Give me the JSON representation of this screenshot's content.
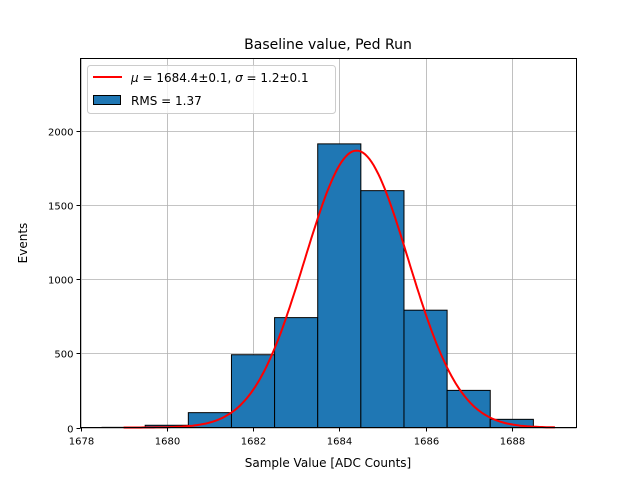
{
  "chart_data": {
    "type": "bar",
    "title": "Baseline value, Ped Run",
    "xlabel": "Sample Value [ADC Counts]",
    "ylabel": "Events",
    "xlim": [
      1678,
      1689.5
    ],
    "ylim": [
      0,
      2485
    ],
    "xticks": [
      1678,
      1680,
      1682,
      1684,
      1686,
      1688
    ],
    "yticks": [
      0,
      500,
      1000,
      1500,
      2000
    ],
    "grid": true,
    "bin_edges": [
      1678.5,
      1679.5,
      1680.5,
      1681.5,
      1682.5,
      1683.5,
      1684.5,
      1685.5,
      1686.5,
      1687.5,
      1688.5
    ],
    "values": [
      1,
      15,
      100,
      490,
      740,
      1910,
      1595,
      790,
      250,
      55
    ],
    "bar_color": "#1f77b4",
    "fit": {
      "type": "gaussian",
      "mu": 1684.4,
      "sigma": 1.2,
      "amplitude": 1865,
      "range": [
        1679,
        1689
      ],
      "color": "#ff0000"
    },
    "legend": {
      "placement": "top-left",
      "entries": [
        "$\\mu = 1684.4 \\pm 0.1$, $\\sigma = 1.2 \\pm 0.1$",
        "RMS = 1.37"
      ]
    },
    "legend_fit_parts": {
      "mu_sym": "μ",
      "mu_text": " = 1684.4±0.1, ",
      "sigma_sym": "σ",
      "sigma_text": " = 1.2±0.1"
    }
  }
}
